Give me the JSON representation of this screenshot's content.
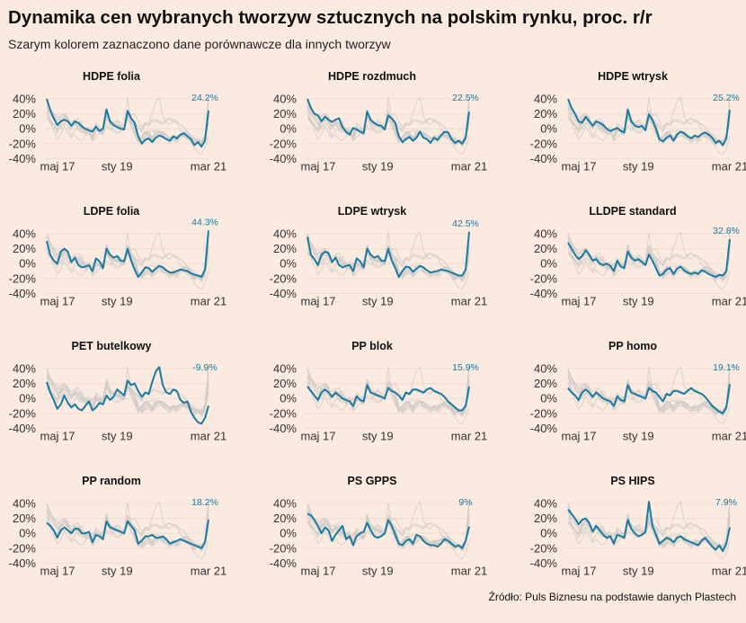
{
  "header": {
    "title": "Dynamika cen wybranych tworzyw sztucznych na polskim rynku, proc. r/r",
    "subtitle": "Szarym kolorem zaznaczono dane porównawcze dla innych tworzyw"
  },
  "footer": {
    "source": "Źródło: Puls Biznesu na podstawie danych Plastech"
  },
  "colors": {
    "highlight": "#1a7aa0",
    "context": "#cfcbc8",
    "background": "#fbeadf"
  },
  "chart_data": {
    "type": "line",
    "ylim": [
      -40,
      40
    ],
    "yticks": [
      "40%",
      "20%",
      "0%",
      "-20%",
      "-40%"
    ],
    "ytick_values": [
      40,
      20,
      0,
      -20,
      -40
    ],
    "xticks": [
      "maj 17",
      "sty 19",
      "mar 21"
    ],
    "xtick_index": [
      0,
      20,
      46
    ],
    "x_count": 47,
    "panels": [
      {
        "name": "HDPE folia",
        "last_label": "24.2%",
        "values": [
          40,
          25,
          14,
          5,
          10,
          12,
          10,
          4,
          10,
          8,
          3,
          0,
          -2,
          -4,
          3,
          -3,
          0,
          26,
          10,
          5,
          2,
          0,
          -1,
          24,
          14,
          8,
          -10,
          -20,
          -15,
          -13,
          -18,
          -12,
          -9,
          -11,
          -14,
          -16,
          -10,
          -13,
          -8,
          -6,
          -10,
          -14,
          -22,
          -18,
          -24,
          -16,
          24.2
        ]
      },
      {
        "name": "HDPE rozdmuch",
        "last_label": "22.5%",
        "values": [
          40,
          28,
          20,
          18,
          10,
          16,
          12,
          9,
          12,
          14,
          2,
          -4,
          -8,
          1,
          -1,
          -4,
          -6,
          23,
          12,
          8,
          5,
          4,
          -1,
          18,
          14,
          8,
          -10,
          -18,
          -14,
          -11,
          -16,
          -12,
          -4,
          -12,
          -14,
          -19,
          -12,
          -15,
          -9,
          -4,
          -5,
          -14,
          -19,
          -16,
          -20,
          -12,
          22.5
        ]
      },
      {
        "name": "HDPE wtrysk",
        "last_label": "25.2%",
        "values": [
          40,
          28,
          20,
          10,
          8,
          16,
          10,
          4,
          10,
          8,
          5,
          0,
          -3,
          -1,
          1,
          -3,
          -5,
          26,
          10,
          4,
          2,
          4,
          -2,
          19,
          12,
          0,
          -14,
          -17,
          -12,
          -9,
          -16,
          -8,
          -4,
          -6,
          -10,
          -13,
          -9,
          -11,
          -7,
          -5,
          -8,
          -12,
          -19,
          -16,
          -22,
          -13,
          25.2
        ]
      },
      {
        "name": "LDPE folia",
        "last_label": "44.3%",
        "values": [
          30,
          12,
          4,
          0,
          16,
          20,
          16,
          2,
          8,
          -2,
          -5,
          -4,
          -2,
          -10,
          7,
          3,
          -6,
          20,
          12,
          8,
          10,
          4,
          3,
          20,
          4,
          -8,
          -18,
          -12,
          -5,
          -6,
          -11,
          -7,
          -3,
          -5,
          -9,
          -12,
          -12,
          -10,
          -8,
          -9,
          -10,
          -13,
          -15,
          -16,
          -18,
          -8,
          44.3
        ]
      },
      {
        "name": "LDPE wtrysk",
        "last_label": "42.5%",
        "values": [
          36,
          12,
          6,
          -2,
          12,
          16,
          14,
          2,
          8,
          -2,
          -5,
          -3,
          -2,
          -10,
          7,
          3,
          -5,
          20,
          12,
          8,
          10,
          4,
          3,
          20,
          4,
          -6,
          -18,
          -10,
          -4,
          -5,
          -11,
          -7,
          -3,
          -5,
          -9,
          -12,
          -11,
          -10,
          -8,
          -9,
          -10,
          -12,
          -14,
          -16,
          -16,
          -8,
          42.5
        ]
      },
      {
        "name": "LLDPE standard",
        "last_label": "32.8%",
        "values": [
          28,
          20,
          12,
          6,
          10,
          18,
          12,
          4,
          6,
          0,
          -2,
          0,
          -3,
          -10,
          4,
          -4,
          -6,
          16,
          8,
          4,
          6,
          2,
          -2,
          12,
          4,
          -6,
          -16,
          -14,
          -8,
          -6,
          -14,
          -7,
          -4,
          -9,
          -12,
          -14,
          -12,
          -14,
          -9,
          -11,
          -14,
          -16,
          -18,
          -15,
          -16,
          -10,
          32.8
        ]
      },
      {
        "name": "PET butelkowy",
        "last_label": "-9.9%",
        "values": [
          22,
          8,
          -2,
          -14,
          -8,
          4,
          -6,
          -12,
          -8,
          -14,
          -16,
          -10,
          -4,
          -16,
          -12,
          -6,
          -8,
          4,
          -2,
          2,
          12,
          8,
          4,
          24,
          18,
          20,
          10,
          2,
          8,
          6,
          22,
          36,
          42,
          18,
          8,
          6,
          12,
          10,
          -2,
          -6,
          -4,
          -18,
          -26,
          -32,
          -34,
          -26,
          -9.9
        ]
      },
      {
        "name": "PP blok",
        "last_label": "15.9%",
        "values": [
          16,
          10,
          4,
          -2,
          8,
          12,
          8,
          2,
          8,
          4,
          0,
          -2,
          -4,
          -10,
          3,
          -2,
          -4,
          18,
          8,
          6,
          4,
          2,
          0,
          14,
          10,
          8,
          4,
          -2,
          8,
          6,
          12,
          12,
          10,
          8,
          12,
          14,
          10,
          8,
          6,
          2,
          -4,
          -8,
          -12,
          -16,
          -16,
          -10,
          15.9
        ]
      },
      {
        "name": "PP homo",
        "last_label": "19.1%",
        "values": [
          14,
          8,
          4,
          -2,
          8,
          12,
          8,
          2,
          8,
          4,
          0,
          -2,
          -4,
          -10,
          3,
          -2,
          -4,
          18,
          8,
          6,
          4,
          2,
          0,
          14,
          10,
          8,
          2,
          -4,
          6,
          4,
          10,
          10,
          8,
          6,
          10,
          14,
          10,
          8,
          6,
          2,
          -4,
          -10,
          -14,
          -18,
          -20,
          -12,
          19.1
        ]
      },
      {
        "name": "PP random",
        "last_label": "18.2%",
        "values": [
          14,
          10,
          4,
          -6,
          4,
          8,
          4,
          0,
          6,
          6,
          0,
          0,
          2,
          -12,
          -2,
          -4,
          -8,
          16,
          8,
          6,
          4,
          2,
          0,
          16,
          10,
          4,
          -14,
          -10,
          -4,
          -4,
          -2,
          -6,
          -6,
          -4,
          -8,
          -14,
          -12,
          -10,
          -8,
          -10,
          -12,
          -14,
          -16,
          -18,
          -20,
          -12,
          18.2
        ]
      },
      {
        "name": "PS GPPS",
        "last_label": "9%",
        "values": [
          26,
          24,
          18,
          10,
          0,
          8,
          4,
          -10,
          -2,
          4,
          10,
          -8,
          -4,
          -16,
          -4,
          0,
          2,
          14,
          4,
          -4,
          -6,
          -4,
          0,
          18,
          10,
          -2,
          -14,
          -16,
          -10,
          -8,
          -14,
          -2,
          -4,
          -10,
          -14,
          -16,
          -16,
          -18,
          -14,
          -8,
          -10,
          -14,
          -18,
          -16,
          -20,
          -10,
          9.0
        ]
      },
      {
        "name": "PS HIPS",
        "last_label": "7.9%",
        "values": [
          32,
          26,
          20,
          12,
          18,
          20,
          14,
          2,
          10,
          4,
          -2,
          -6,
          -4,
          -14,
          -2,
          -4,
          -6,
          18,
          6,
          0,
          -4,
          -2,
          2,
          42,
          10,
          -2,
          -14,
          -10,
          -6,
          -8,
          -12,
          -6,
          -4,
          -8,
          -10,
          -12,
          -14,
          -16,
          -10,
          -6,
          -12,
          -18,
          -22,
          -16,
          -24,
          -14,
          7.9
        ]
      }
    ]
  }
}
